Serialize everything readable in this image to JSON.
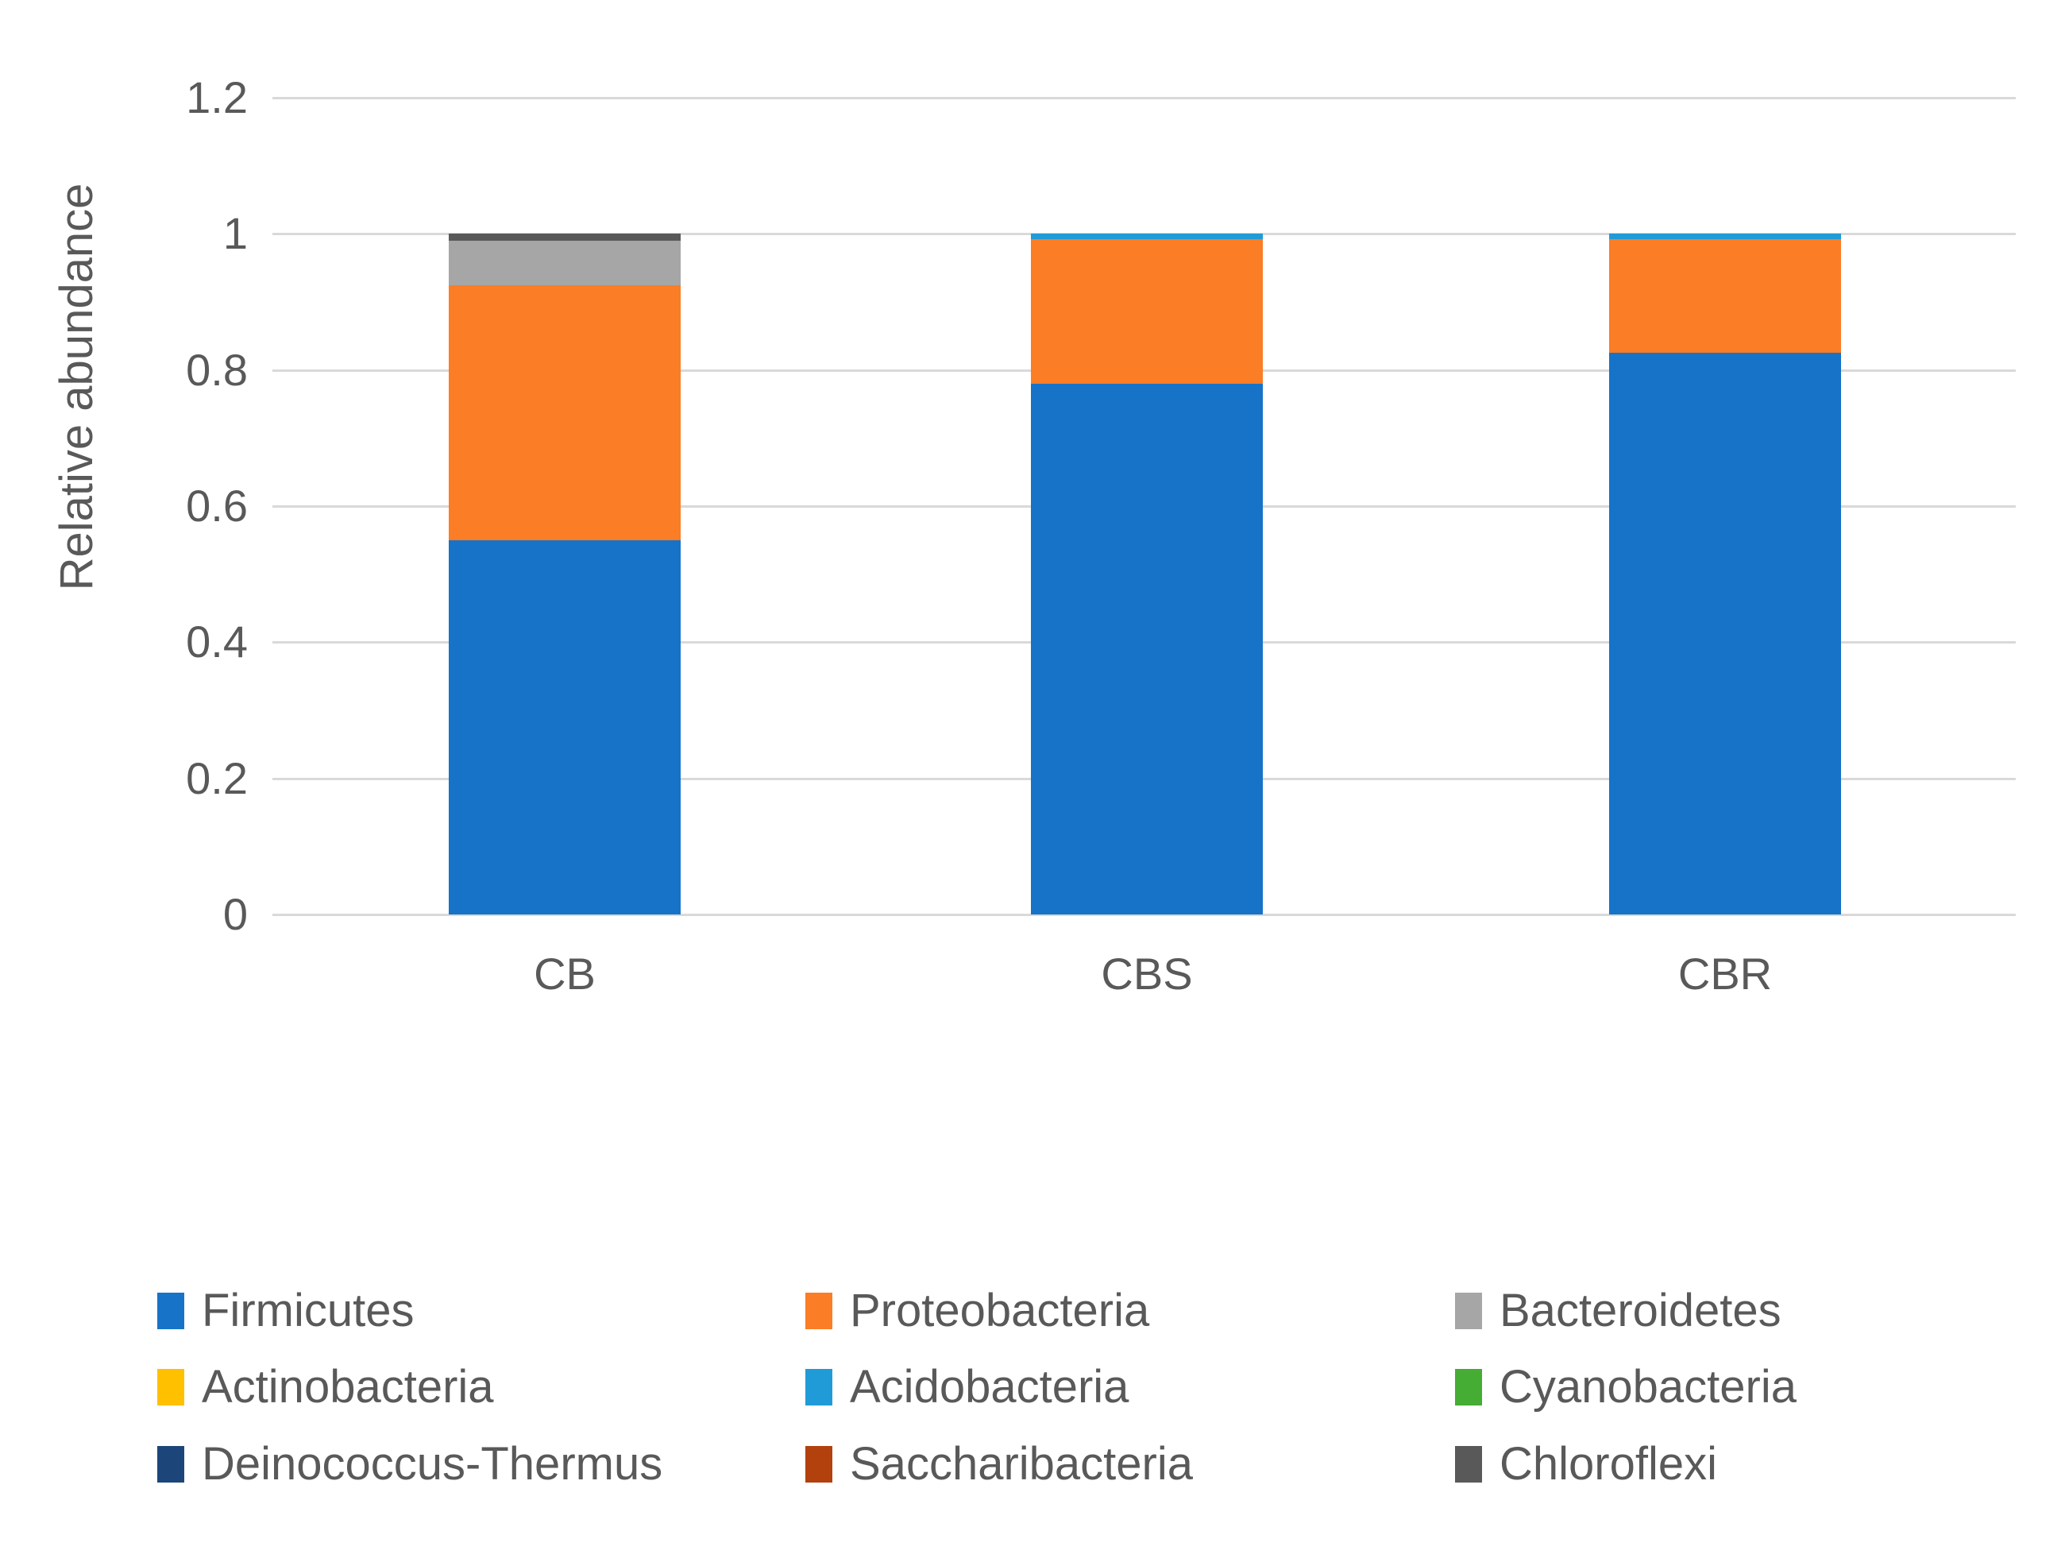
{
  "axis": {
    "y_title": "Relative abundance"
  },
  "colors": {
    "text": "#595959",
    "gridline": "#D9D9D9",
    "background": "#FFFFFF"
  },
  "chart_data": {
    "type": "bar",
    "stacked": true,
    "title": "",
    "xlabel": "",
    "ylabel": "Relative abundance",
    "categories": [
      "CB",
      "CBS",
      "CBR"
    ],
    "series": [
      {
        "name": "Firmicutes",
        "color": "#1673C8",
        "values": [
          0.55,
          0.78,
          0.825
        ]
      },
      {
        "name": "Proteobacteria",
        "color": "#FB7D26",
        "values": [
          0.375,
          0.212,
          0.167
        ]
      },
      {
        "name": "Bacteroidetes",
        "color": "#A6A6A6",
        "values": [
          0.065,
          0,
          0
        ]
      },
      {
        "name": "Actinobacteria",
        "color": "#FFC000",
        "values": [
          0,
          0,
          0
        ]
      },
      {
        "name": "Acidobacteria",
        "color": "#209BD8",
        "values": [
          0,
          0.008,
          0.008
        ]
      },
      {
        "name": "Cyanobacteria",
        "color": "#45AC34",
        "values": [
          0,
          0,
          0
        ]
      },
      {
        "name": "Deinococcus-Thermus",
        "color": "#1C4679",
        "values": [
          0,
          0,
          0
        ]
      },
      {
        "name": "Saccharibacteria",
        "color": "#B2410E",
        "values": [
          0,
          0,
          0
        ]
      },
      {
        "name": "Chloroflexi",
        "color": "#595959",
        "values": [
          0.01,
          0,
          0
        ]
      }
    ],
    "ylim": [
      0,
      1.2
    ],
    "yticks": [
      0,
      0.2,
      0.4,
      0.6,
      0.8,
      1,
      1.2
    ],
    "ytick_labels": [
      "0",
      "0.2",
      "0.4",
      "0.6",
      "0.8",
      "1",
      "1.2"
    ],
    "grid": true,
    "legend_position": "bottom",
    "legend_columns": 3
  }
}
